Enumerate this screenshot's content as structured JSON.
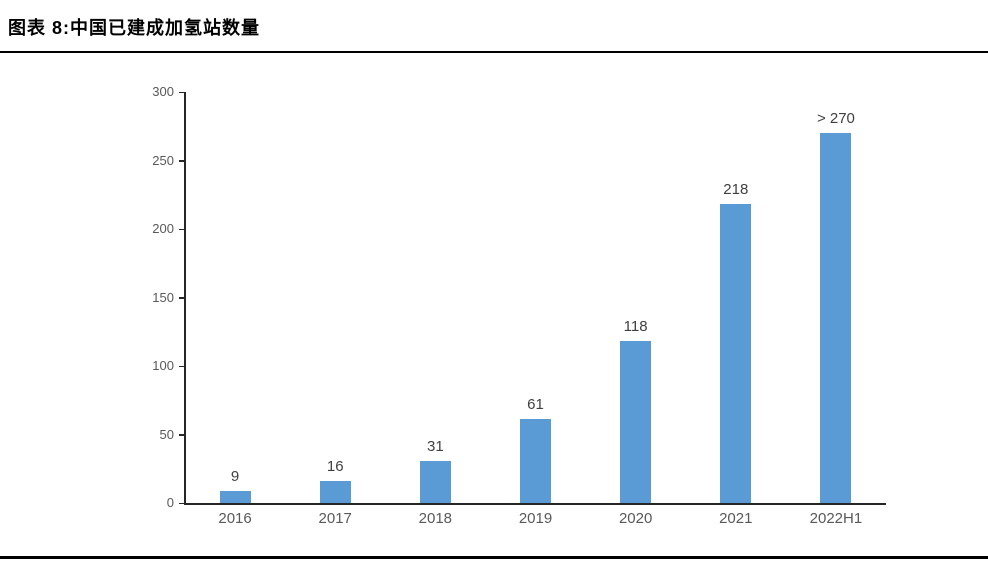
{
  "figure": {
    "title": "图表 8:中国已建成加氢站数量"
  },
  "chart_data": {
    "type": "bar",
    "title": "中国已建成加氢站数量",
    "categories": [
      "2016",
      "2017",
      "2018",
      "2019",
      "2020",
      "2021",
      "2022H1"
    ],
    "values": [
      9,
      16,
      31,
      61,
      118,
      218,
      270
    ],
    "bar_labels": [
      "9",
      "16",
      "31",
      "61",
      "118",
      "218",
      "> 270"
    ],
    "xlabel": "",
    "ylabel": "",
    "ylim": [
      0,
      300
    ],
    "ytick_step": 50,
    "ytick_labels": [
      "0",
      "50",
      "100",
      "150",
      "200",
      "250",
      "300"
    ],
    "grid": false,
    "legend": "none",
    "colors": {
      "bar": "#5B9BD5",
      "axis": "#262626",
      "tick_label": "#595959",
      "data_label": "#404040",
      "divider": "#000000",
      "background": "#FFFFFF"
    }
  }
}
